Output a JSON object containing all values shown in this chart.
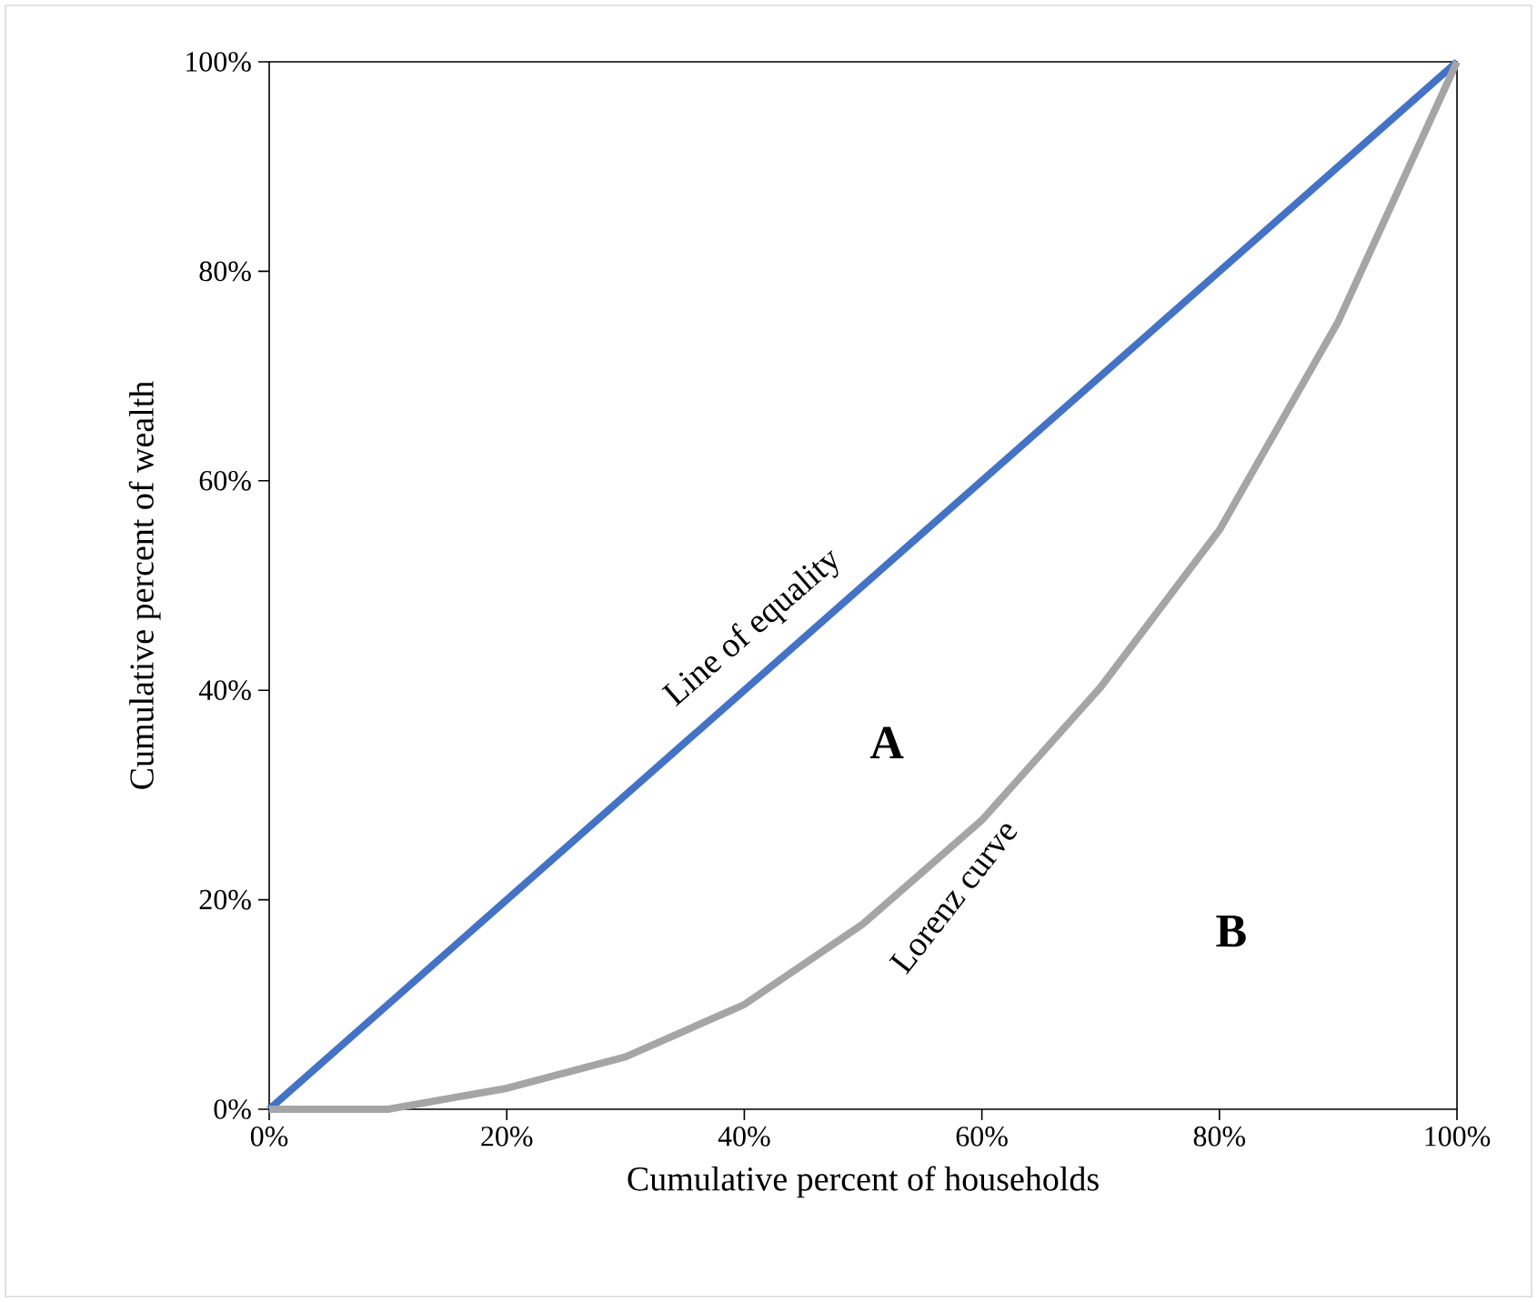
{
  "chart_data": {
    "type": "line",
    "xlabel": "Cumulative percent of households",
    "ylabel": "Cumulative percent of wealth",
    "xlim": [
      0,
      100
    ],
    "ylim": [
      0,
      100
    ],
    "xticks": [
      {
        "value": 0,
        "label": "0%"
      },
      {
        "value": 20,
        "label": "20%"
      },
      {
        "value": 40,
        "label": "40%"
      },
      {
        "value": 60,
        "label": "60%"
      },
      {
        "value": 80,
        "label": "80%"
      },
      {
        "value": 100,
        "label": "100%"
      }
    ],
    "yticks": [
      {
        "value": 0,
        "label": "0%"
      },
      {
        "value": 20,
        "label": "20%"
      },
      {
        "value": 40,
        "label": "40%"
      },
      {
        "value": 60,
        "label": "60%"
      },
      {
        "value": 80,
        "label": "80%"
      },
      {
        "value": 100,
        "label": "100%"
      }
    ],
    "grid": false,
    "legend": false,
    "marker": "none",
    "line_style": "solid",
    "series": [
      {
        "name": "Line of equality",
        "color": "#4472c4",
        "x": [
          0,
          100
        ],
        "values": [
          0,
          100
        ]
      },
      {
        "name": "Lorenz curve",
        "color": "#a5a5a5",
        "x": [
          0,
          10,
          20,
          30,
          40,
          50,
          60,
          70,
          80,
          90,
          100
        ],
        "values": [
          0,
          0,
          2,
          5,
          10,
          17.7,
          27.6,
          40.3,
          55.3,
          75.2,
          100
        ]
      }
    ],
    "annotations": [
      "A",
      "B"
    ]
  }
}
